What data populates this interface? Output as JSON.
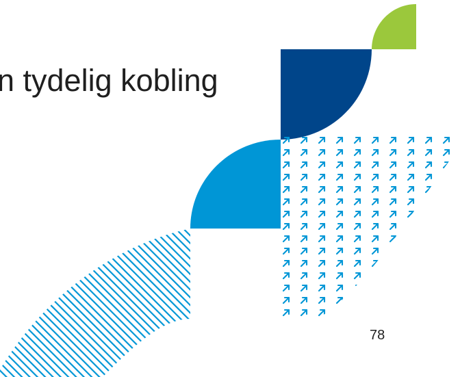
{
  "slide": {
    "title": "n tydelig kobling",
    "page_number": "78"
  },
  "colors": {
    "green": "#9BC83C",
    "dark_blue": "#00458A",
    "light_blue": "#0096D6",
    "text": "#1F1F1F"
  },
  "decorations": {
    "green_shape": "quarter-leaf",
    "dark_blue_shape": "quarter-circle",
    "light_blue_shape": "quarter-circle",
    "arrow_pattern": "north-east-arrow-icon",
    "stripe_pattern": "diagonal-stripes"
  }
}
